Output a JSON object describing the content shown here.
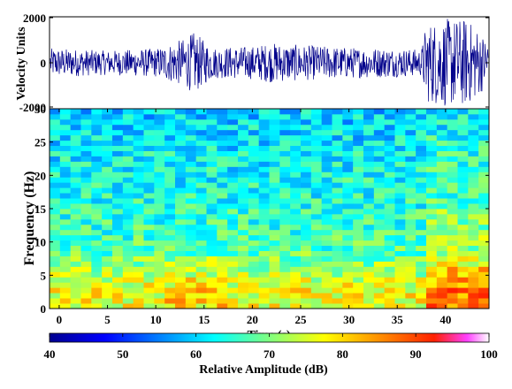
{
  "chart_data": [
    {
      "type": "line",
      "ylabel": "Velocity Units",
      "yticks": [
        "2000",
        "0",
        "-2000"
      ],
      "ylim": [
        -2000,
        2000
      ],
      "xlim": [
        -1,
        44.5
      ],
      "series": [
        {
          "color": "#00008b",
          "envelope_description_values": {
            "t": [
              0,
              5,
              10,
              13,
              14,
              15,
              16,
              20,
              22,
              25,
              30,
              35,
              37.5,
              38,
              40,
              41,
              42,
              43,
              44
            ],
            "amplitude": [
              650,
              550,
              650,
              1100,
              1400,
              1000,
              700,
              750,
              900,
              800,
              700,
              650,
              600,
              1800,
              2000,
              2000,
              2000,
              1700,
              1200
            ]
          }
        }
      ]
    },
    {
      "type": "heatmap",
      "xlabel": "Time (s)",
      "ylabel": "Frequency (Hz)",
      "xticks": [
        "0",
        "5",
        "10",
        "15",
        "20",
        "25",
        "30",
        "35",
        "40"
      ],
      "yticks": [
        "0",
        "5",
        "10",
        "15",
        "20",
        "25",
        "30"
      ],
      "xlim": [
        -1,
        44.5
      ],
      "ylim": [
        0,
        30
      ],
      "colorbar": {
        "label": "Relative Amplitude  (dB)",
        "ticks": [
          "40",
          "50",
          "60",
          "70",
          "80",
          "90",
          "100"
        ],
        "range": [
          40,
          100
        ],
        "colormap": "jet"
      },
      "description_values": {
        "low_freq_band_db": 78,
        "mid_freq_db": 66,
        "high_freq_db": 58,
        "late_event_start_s": 38,
        "late_event_peak_db": 93
      }
    }
  ]
}
